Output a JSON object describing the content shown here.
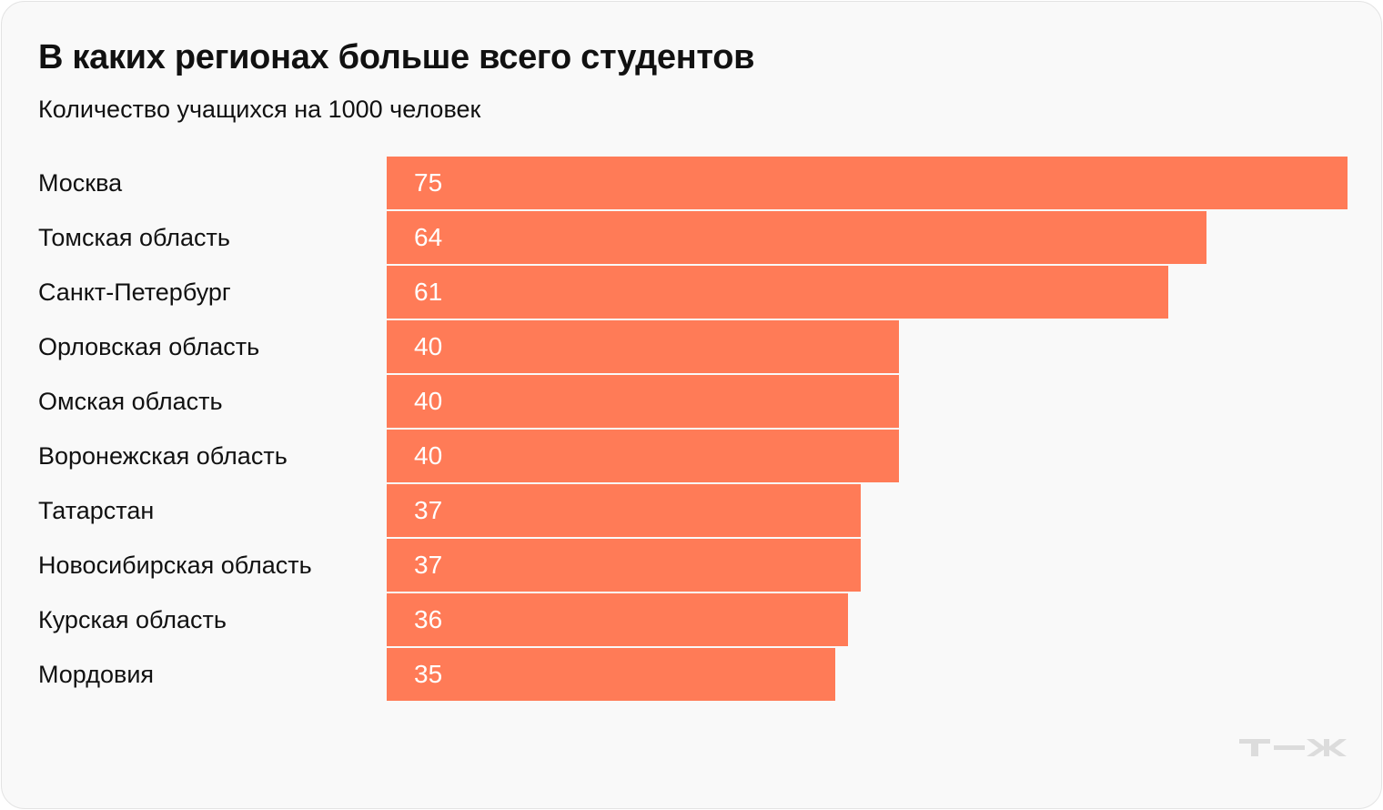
{
  "chart_data": {
    "type": "bar",
    "orientation": "horizontal",
    "title": "В каких регионах больше всего студентов",
    "subtitle": "Количество учащихся на 1000 человек",
    "categories": [
      "Москва",
      "Томская область",
      "Санкт-Петербург",
      "Орловская область",
      "Омская область",
      "Воронежская область",
      "Татарстан",
      "Новосибирская область",
      "Курская область",
      "Мордовия"
    ],
    "values": [
      75,
      64,
      61,
      40,
      40,
      40,
      37,
      37,
      36,
      35
    ],
    "xlim": [
      0,
      75
    ],
    "grid": false,
    "data_labels": true,
    "bar_color": "#ff7b57"
  },
  "logo": {
    "text": "т—ж",
    "color": "#dcdcdc"
  }
}
